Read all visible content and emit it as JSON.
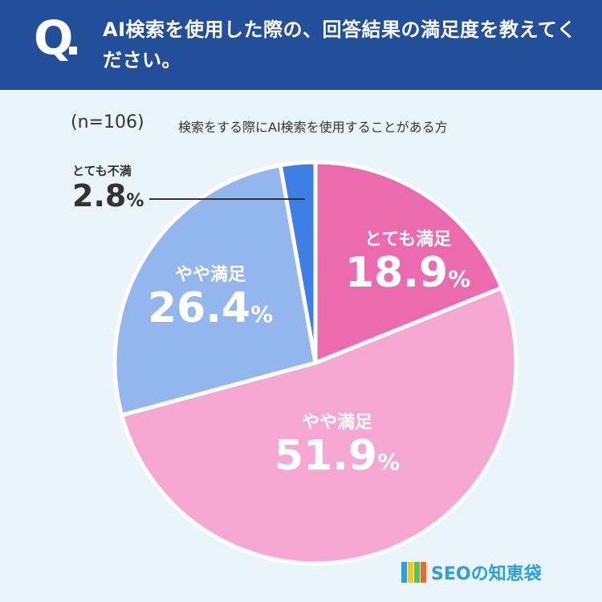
{
  "header": {
    "q_label": "Q",
    "question": "AI検索を使用した際の、回答結果の満足度を教えてください。"
  },
  "sample": {
    "n_label": "(n=106)",
    "description": "検索をする際にAI検索を使用することがある方"
  },
  "chart_data": {
    "type": "pie",
    "title": "",
    "unit": "%",
    "slices": [
      {
        "label": "とても満足",
        "value": 18.9,
        "color": "#ec6aae"
      },
      {
        "label": "やや満足",
        "value": 51.9,
        "color": "#f6a8d3"
      },
      {
        "label": "やや満足",
        "value": 26.4,
        "color": "#93b6ef"
      },
      {
        "label": "とても不満",
        "value": 2.8,
        "color": "#3e7fe6"
      }
    ]
  },
  "labels": {
    "s0": {
      "name": "とても満足",
      "value": "18.9",
      "unit": "%"
    },
    "s1": {
      "name": "やや満足",
      "value": "51.9",
      "unit": "%"
    },
    "s2": {
      "name": "やや満足",
      "value": "26.4",
      "unit": "%"
    },
    "s3": {
      "name": "とても不満",
      "value": "2.8",
      "unit": "%"
    }
  },
  "brand": {
    "name": "SEOの知恵袋",
    "icon": "book-stack-logo",
    "colors": [
      "#2f9fd8",
      "#f2c531",
      "#5bbf5b",
      "#e46b3a"
    ]
  }
}
